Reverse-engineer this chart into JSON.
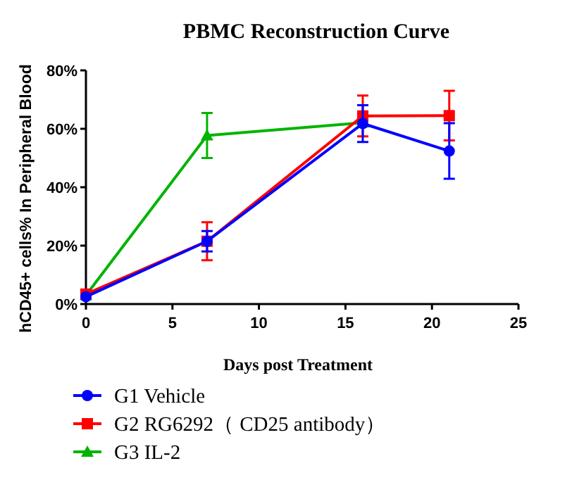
{
  "chart_data": {
    "type": "line",
    "title": "PBMC Reconstruction Curve",
    "xlabel": "Days post Treatment",
    "ylabel": "hCD45+ cells%  In Peripheral Blood",
    "xlim": [
      0,
      25
    ],
    "xticks": [
      0,
      5,
      10,
      15,
      20,
      25
    ],
    "ylim": [
      0,
      80
    ],
    "yticks": [
      {
        "value": 0,
        "label": "0%"
      },
      {
        "value": 20,
        "label": "20%"
      },
      {
        "value": 40,
        "label": "40%"
      },
      {
        "value": 60,
        "label": "60%"
      },
      {
        "value": 80,
        "label": "80%"
      }
    ],
    "legend": "bottom",
    "grid": false,
    "series": [
      {
        "name": "G1 Vehicle",
        "color": "#0000ff",
        "marker": "circle",
        "x": [
          0,
          7,
          16,
          21
        ],
        "values": [
          2.5,
          21.5,
          61.8,
          52.4
        ],
        "errors": [
          null,
          3.5,
          6.3,
          9.5
        ]
      },
      {
        "name": "G2 RG6292（ CD25 antibody）",
        "color": "#ff0000",
        "marker": "square",
        "x": [
          0,
          7,
          16,
          21
        ],
        "values": [
          3.4,
          21.5,
          64.4,
          64.5
        ],
        "errors": [
          null,
          6.5,
          7,
          8.5
        ]
      },
      {
        "name": "G3 IL-2",
        "color": "#00b400",
        "marker": "triangle",
        "x": [
          0,
          7,
          16
        ],
        "values": [
          3,
          57.7,
          62.1
        ],
        "errors": [
          null,
          7.7,
          null
        ]
      }
    ]
  }
}
